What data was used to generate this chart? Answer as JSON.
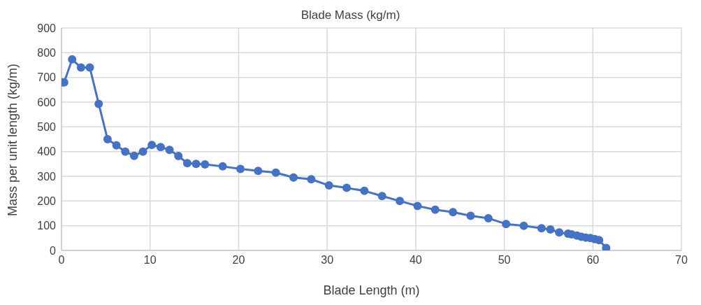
{
  "chart_data": {
    "type": "line",
    "title": "Blade Mass (kg/m)",
    "xlabel": "Blade Length (m)",
    "ylabel": "Mass per unit length  (kg/m)",
    "x": [
      0,
      0.3,
      1.2,
      2.2,
      3.2,
      4.2,
      5.2,
      6.2,
      7.2,
      8.2,
      9.2,
      10.2,
      11.2,
      12.2,
      13.2,
      14.2,
      15.2,
      16.2,
      18.2,
      20.2,
      22.2,
      24.2,
      26.2,
      28.2,
      30.2,
      32.2,
      34.2,
      36.2,
      38.2,
      40.2,
      42.2,
      44.2,
      46.2,
      48.2,
      50.2,
      52.2,
      54.2,
      55.2,
      56.2,
      57.2,
      57.6,
      58.2,
      58.7,
      59.2,
      59.7,
      60.2,
      60.7,
      61.2,
      61.5
    ],
    "series": [
      {
        "color": "#4472c4",
        "values": [
          680,
          680,
          773,
          740,
          740,
          593,
          450,
          425,
          400,
          383,
          400,
          427,
          418,
          407,
          382,
          353,
          350,
          348,
          340,
          330,
          322,
          315,
          295,
          288,
          263,
          253,
          241,
          220,
          200,
          180,
          165,
          155,
          140,
          130,
          107,
          100,
          90,
          85,
          73,
          68,
          65,
          60,
          55,
          52,
          50,
          46,
          42,
          null,
          10
        ]
      }
    ],
    "xlim": [
      0,
      70
    ],
    "xticks": [
      0,
      10,
      20,
      30,
      40,
      50,
      60,
      70
    ],
    "ylim": [
      0,
      900
    ],
    "yticks": [
      0,
      100,
      200,
      300,
      400,
      500,
      600,
      700,
      800,
      900
    ],
    "grid": true,
    "marker": "circle",
    "line_style": "solid"
  }
}
